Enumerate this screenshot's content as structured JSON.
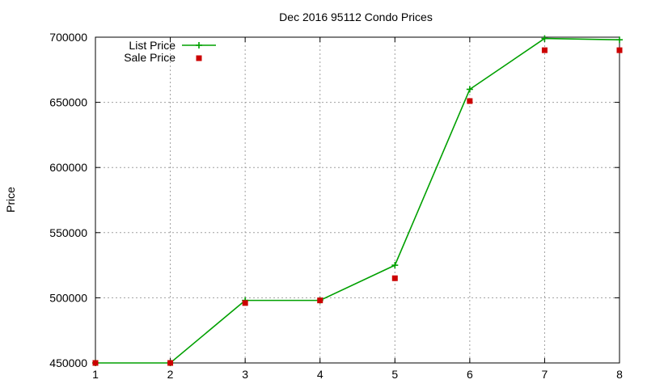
{
  "chart_data": {
    "type": "line",
    "title": "Dec 2016 95112 Condo Prices",
    "xlabel": "",
    "ylabel": "Price",
    "x": [
      1,
      2,
      3,
      4,
      5,
      6,
      7,
      8
    ],
    "xlim": [
      1,
      8
    ],
    "ylim": [
      450000,
      700000
    ],
    "xticks": [
      "1",
      "2",
      "3",
      "4",
      "5",
      "6",
      "7",
      "8"
    ],
    "yticks": [
      "450000",
      "500000",
      "550000",
      "600000",
      "650000",
      "700000"
    ],
    "grid": true,
    "legend_position": "top-left",
    "series": [
      {
        "name": "List Price",
        "style": "line+cross",
        "color": "#00a000",
        "values": [
          450000,
          450000,
          498000,
          498000,
          525000,
          660000,
          699000,
          698000
        ]
      },
      {
        "name": "Sale Price",
        "style": "square",
        "color": "#cc0000",
        "values": [
          450000,
          450000,
          496000,
          498000,
          515000,
          651000,
          690000,
          690000
        ]
      }
    ]
  }
}
